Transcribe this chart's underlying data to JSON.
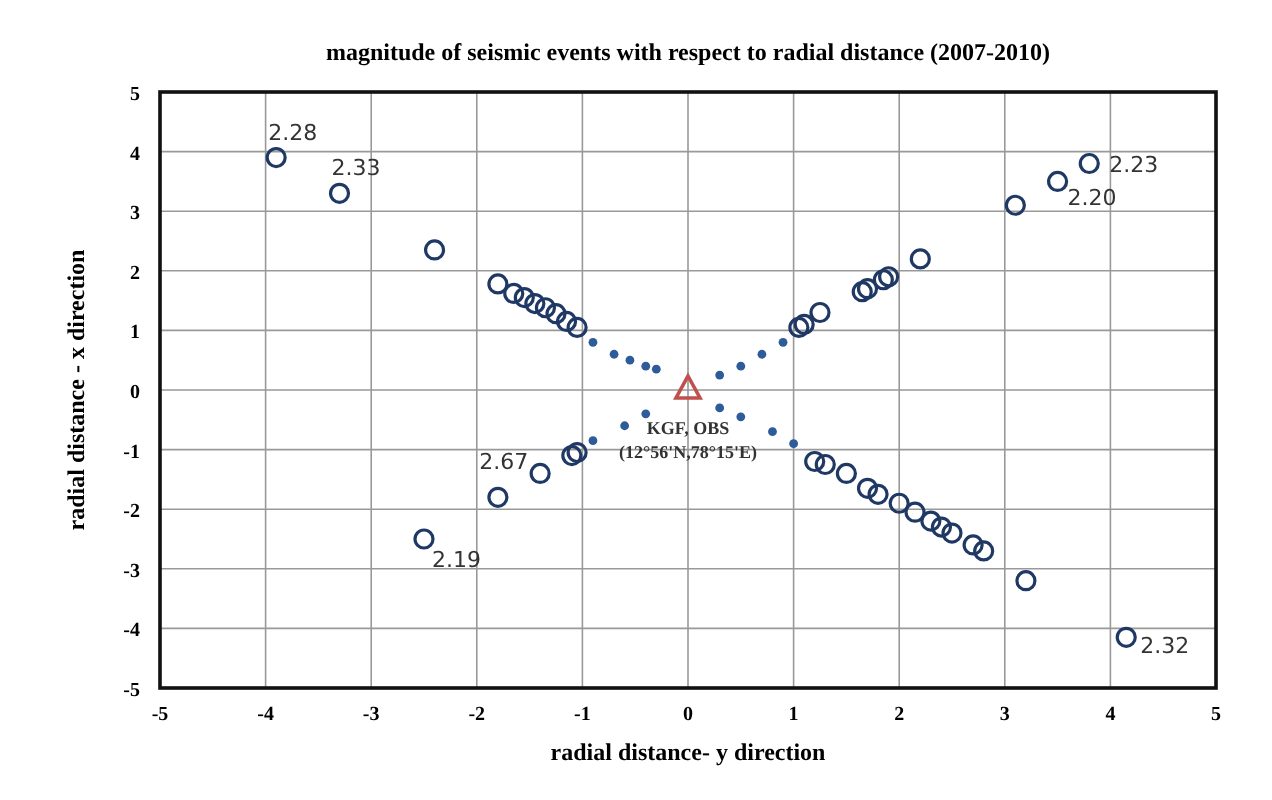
{
  "chart_data": {
    "type": "scatter",
    "title": "magnitude of seismic events with respect to radial distance (2007-2010)",
    "xlabel": "radial distance- y direction",
    "ylabel": "radial distance - x direction",
    "xlim": [
      -5,
      5
    ],
    "ylim": [
      -5,
      5
    ],
    "xticks": [
      -5,
      -4,
      -3,
      -2,
      -1,
      0,
      1,
      2,
      3,
      4,
      5
    ],
    "yticks": [
      -5,
      -4,
      -3,
      -2,
      -1,
      0,
      1,
      2,
      3,
      4,
      5
    ],
    "grid": true,
    "series": [
      {
        "color": "#1f3864",
        "marker": "circle",
        "x": [
          -3.9,
          -3.3,
          -2.4,
          -1.8,
          -1.65,
          -1.55,
          -1.45,
          -1.35,
          -1.25,
          -1.15,
          -1.05,
          3.1,
          3.5,
          3.8,
          2.2,
          1.9,
          1.85,
          1.7,
          1.65,
          1.25,
          1.1,
          1.05,
          -2.5,
          -1.8,
          -1.4,
          -1.1,
          -1.05,
          1.2,
          1.3,
          1.5,
          1.7,
          1.8,
          2.0,
          2.15,
          2.3,
          2.4,
          2.5,
          2.7,
          2.8,
          3.2,
          4.15
        ],
        "values": [
          3.9,
          3.3,
          2.35,
          1.78,
          1.62,
          1.55,
          1.45,
          1.38,
          1.28,
          1.15,
          1.05,
          3.1,
          3.5,
          3.8,
          2.2,
          1.9,
          1.85,
          1.7,
          1.65,
          1.3,
          1.1,
          1.05,
          -2.5,
          -1.8,
          -1.4,
          -1.1,
          -1.05,
          -1.2,
          -1.25,
          -1.4,
          -1.65,
          -1.75,
          -1.9,
          -2.05,
          -2.2,
          -2.3,
          -2.4,
          -2.6,
          -2.7,
          -3.2,
          -4.15
        ]
      },
      {
        "color": "#2e5c9a",
        "marker": "dot",
        "x": [
          -0.9,
          -0.7,
          -0.55,
          -0.4,
          -0.3,
          0.3,
          0.5,
          0.7,
          0.9,
          -0.9,
          -0.6,
          -0.4,
          0.3,
          0.5,
          0.8,
          1.0
        ],
        "values": [
          0.8,
          0.6,
          0.5,
          0.4,
          0.35,
          0.25,
          0.4,
          0.6,
          0.8,
          -0.85,
          -0.6,
          -0.4,
          -0.3,
          -0.45,
          -0.7,
          -0.9
        ]
      },
      {
        "color": "#c0504d",
        "marker": "triangle",
        "x": [
          0
        ],
        "values": [
          0
        ]
      }
    ],
    "annotations": [
      {
        "text": "2.28",
        "x": -3.9,
        "y": 3.9
      },
      {
        "text": "2.33",
        "x": -3.3,
        "y": 3.3
      },
      {
        "text": "2.20",
        "x": 3.5,
        "y": 3.5
      },
      {
        "text": "2.23",
        "x": 3.8,
        "y": 3.8
      },
      {
        "text": "2.67",
        "x": -1.4,
        "y": -1.4
      },
      {
        "text": "2.19",
        "x": -2.5,
        "y": -2.5
      },
      {
        "text": "2.32",
        "x": 4.15,
        "y": -4.15
      },
      {
        "text": "KGF, OBS",
        "x": 0,
        "y": 0
      },
      {
        "text": "(12°56'N,78°15'E)",
        "x": 0,
        "y": 0
      }
    ]
  }
}
